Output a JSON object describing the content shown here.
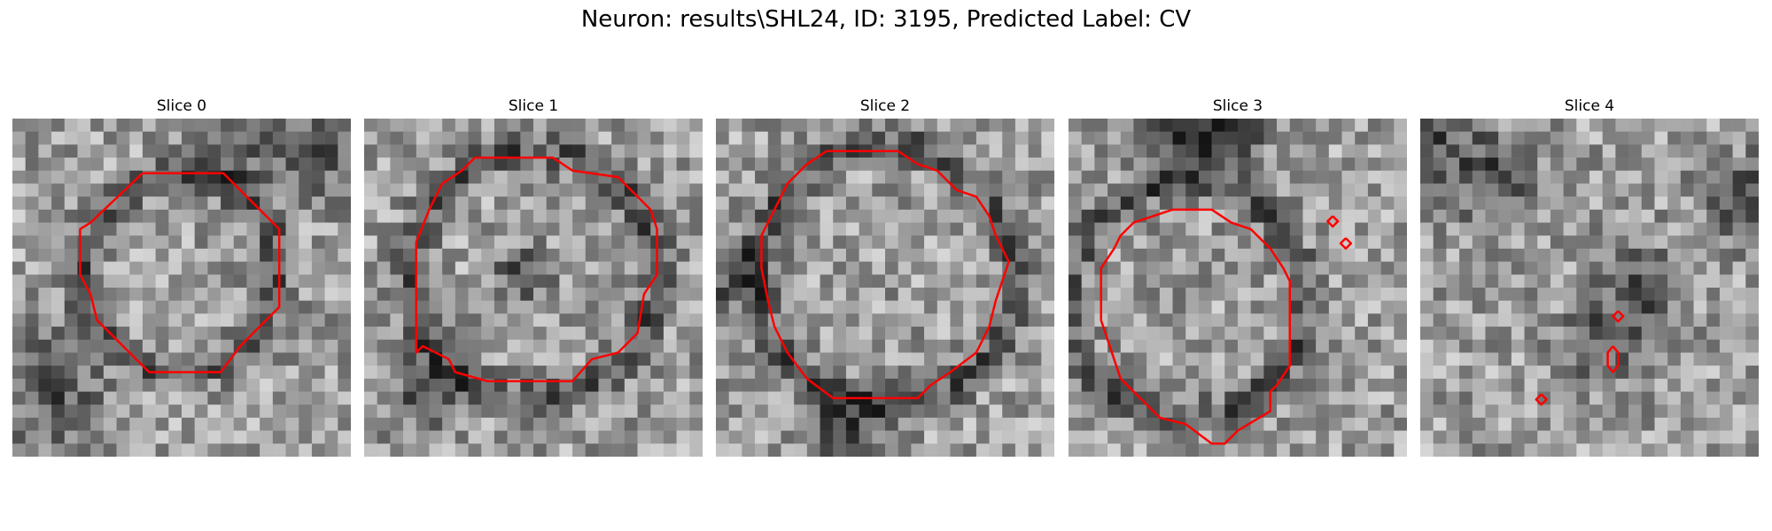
{
  "figure": {
    "title": "Neuron: results\\SHL24, ID: 3195, Predicted Label: CV"
  },
  "colors": {
    "contour": "#ff0000",
    "background": "#ffffff",
    "colormap": "gray"
  },
  "slices": [
    {
      "title": "Slice 0",
      "seed": 11,
      "contours": [
        {
          "pts": [
            [
              10,
              4.2
            ],
            [
              16.2,
              4.2
            ],
            [
              20.5,
              8.5
            ],
            [
              20.5,
              14.5
            ],
            [
              17.5,
              17.5
            ],
            [
              16,
              19.5
            ],
            [
              10.5,
              19.5
            ],
            [
              6.5,
              15.5
            ],
            [
              6,
              13.5
            ],
            [
              5.2,
              12
            ],
            [
              5.2,
              8.5
            ],
            [
              6,
              8
            ],
            [
              10,
              4.2
            ]
          ]
        }
      ],
      "dark_ring": [
        13,
        12,
        7.5
      ],
      "dark_blobs": [
        [
          3,
          21,
          4
        ],
        [
          17,
          2,
          3
        ],
        [
          23,
          3,
          3
        ]
      ]
    },
    {
      "title": "Slice 1",
      "seed": 23,
      "contours": [
        {
          "pts": [
            [
              8.5,
              3
            ],
            [
              14.5,
              3
            ],
            [
              16,
              4
            ],
            [
              19.5,
              4.5
            ],
            [
              21,
              6
            ],
            [
              22,
              7
            ],
            [
              22.5,
              8.5
            ],
            [
              22.5,
              12
            ],
            [
              21.5,
              13.5
            ],
            [
              21,
              16.5
            ],
            [
              19.5,
              18
            ],
            [
              17.5,
              18.5
            ],
            [
              16,
              20.2
            ],
            [
              9.5,
              20.2
            ],
            [
              7,
              19.5
            ],
            [
              6.5,
              18.5
            ],
            [
              4.5,
              17.5
            ],
            [
              4,
              18
            ],
            [
              4,
              9.5
            ],
            [
              5,
              7
            ],
            [
              6,
              5
            ],
            [
              7.5,
              4
            ],
            [
              8.5,
              3
            ]
          ]
        }
      ],
      "dark_ring": [
        13,
        12,
        9.5
      ],
      "dark_blobs": [
        [
          5,
          21,
          3
        ],
        [
          12,
          12,
          2
        ]
      ]
    },
    {
      "title": "Slice 2",
      "seed": 37,
      "contours": [
        {
          "pts": [
            [
              8.5,
              2.5
            ],
            [
              14,
              2.5
            ],
            [
              15.5,
              3.5
            ],
            [
              17,
              4
            ],
            [
              18.5,
              5.5
            ],
            [
              20,
              6
            ],
            [
              21,
              7.5
            ],
            [
              21.5,
              9
            ],
            [
              22,
              10
            ],
            [
              22.5,
              11
            ],
            [
              22,
              12.5
            ],
            [
              21.5,
              14
            ],
            [
              21,
              16
            ],
            [
              20,
              18
            ],
            [
              18,
              19.5
            ],
            [
              16.5,
              20.5
            ],
            [
              15.5,
              21.5
            ],
            [
              9,
              21.5
            ],
            [
              7,
              20
            ],
            [
              5.5,
              18
            ],
            [
              4.5,
              16
            ],
            [
              4,
              14
            ],
            [
              3.5,
              11.5
            ],
            [
              3.5,
              9
            ],
            [
              4.5,
              7
            ],
            [
              5.5,
              5
            ],
            [
              7,
              3.5
            ],
            [
              8.5,
              2.5
            ]
          ]
        }
      ],
      "dark_ring": [
        13,
        12,
        10
      ],
      "dark_blobs": [
        [
          10,
          24,
          3
        ],
        [
          1,
          12,
          3
        ]
      ]
    },
    {
      "title": "Slice 3",
      "seed": 53,
      "contours": [
        {
          "pts": [
            [
              8,
              7
            ],
            [
              11,
              7
            ],
            [
              12.5,
              8
            ],
            [
              14,
              8.5
            ],
            [
              15.5,
              10
            ],
            [
              16.5,
              11.5
            ],
            [
              17,
              12.5
            ],
            [
              17,
              19
            ],
            [
              16,
              20.5
            ],
            [
              15.5,
              21
            ],
            [
              15.5,
              22.5
            ],
            [
              13,
              24
            ],
            [
              12,
              25
            ],
            [
              11,
              25
            ],
            [
              9,
              23.5
            ],
            [
              7,
              23
            ],
            [
              5.5,
              21.5
            ],
            [
              4,
              20
            ],
            [
              3.5,
              18.5
            ],
            [
              3,
              17
            ],
            [
              2.5,
              15.5
            ],
            [
              2.5,
              11.5
            ],
            [
              3.5,
              10
            ],
            [
              4,
              9
            ],
            [
              5,
              8
            ],
            [
              8,
              7
            ]
          ]
        },
        {
          "pts": [
            [
              20.3,
              7.5
            ],
            [
              20.7,
              7.9
            ],
            [
              20.3,
              8.3
            ],
            [
              19.9,
              7.9
            ],
            [
              20.3,
              7.5
            ]
          ]
        },
        {
          "pts": [
            [
              21.3,
              9.2
            ],
            [
              21.7,
              9.6
            ],
            [
              21.3,
              10
            ],
            [
              20.9,
              9.6
            ],
            [
              21.3,
              9.2
            ]
          ]
        }
      ],
      "dark_ring": [
        9,
        14,
        9
      ],
      "dark_blobs": [
        [
          9,
          0,
          4
        ],
        [
          12,
          1,
          3
        ]
      ]
    },
    {
      "title": "Slice 4",
      "seed": 71,
      "contours": [
        {
          "pts": [
            [
              15.2,
              14.8
            ],
            [
              15.6,
              15.2
            ],
            [
              15.2,
              15.6
            ],
            [
              14.8,
              15.2
            ],
            [
              15.2,
              14.8
            ]
          ]
        },
        {
          "pts": [
            [
              14.8,
              17.5
            ],
            [
              15.2,
              18
            ],
            [
              15.2,
              19
            ],
            [
              14.8,
              19.5
            ],
            [
              14.4,
              19
            ],
            [
              14.4,
              18
            ],
            [
              14.8,
              17.5
            ]
          ]
        },
        {
          "pts": [
            [
              9.3,
              21.2
            ],
            [
              9.7,
              21.6
            ],
            [
              9.3,
              22
            ],
            [
              8.9,
              21.6
            ],
            [
              9.3,
              21.2
            ]
          ]
        }
      ],
      "dark_ring": null,
      "dark_blobs": [
        [
          1,
          2,
          4
        ],
        [
          25,
          6,
          3
        ],
        [
          6,
          5,
          3
        ],
        [
          14,
          17,
          3
        ],
        [
          17,
          13,
          3
        ]
      ]
    }
  ]
}
